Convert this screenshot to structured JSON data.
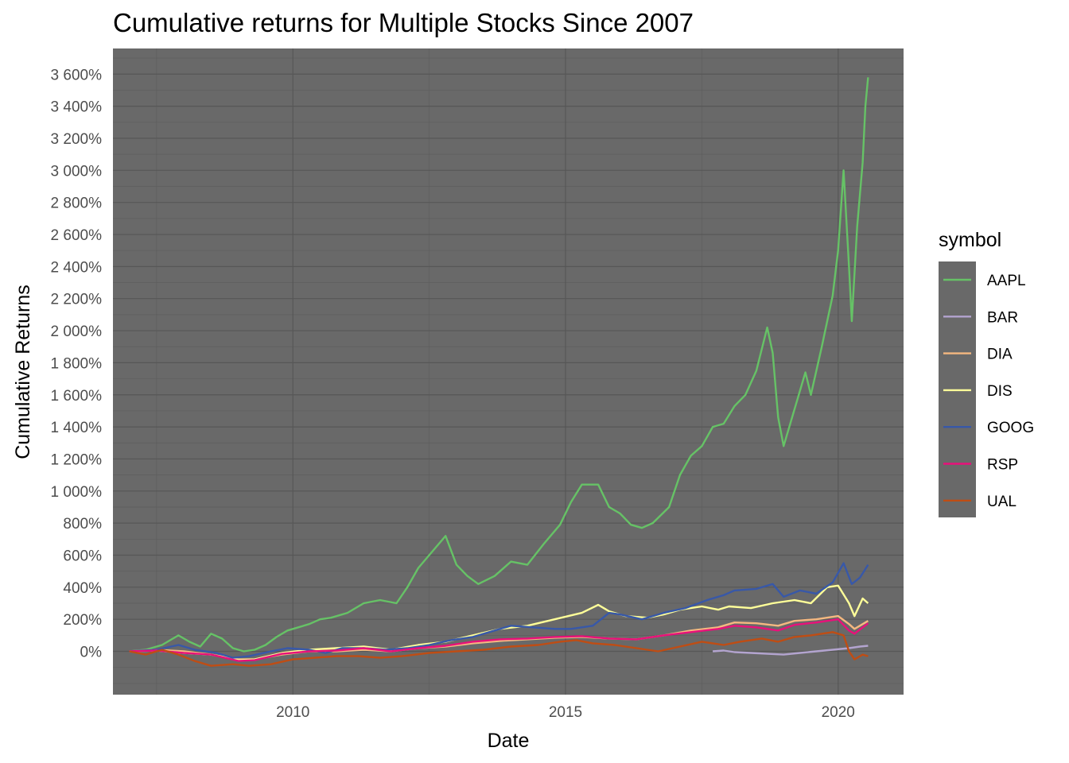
{
  "chart_data": {
    "type": "line",
    "title": "Cumulative returns for Multiple Stocks Since 2007",
    "xlabel": "Date",
    "ylabel": "Cumulative Returns",
    "x_ticks": [
      {
        "label": "2010",
        "value": 2010
      },
      {
        "label": "2015",
        "value": 2015
      },
      {
        "label": "2020",
        "value": 2020
      }
    ],
    "y_ticks": [
      {
        "label": "0%",
        "value": 0
      },
      {
        "label": "200%",
        "value": 200
      },
      {
        "label": "400%",
        "value": 400
      },
      {
        "label": "600%",
        "value": 600
      },
      {
        "label": "800%",
        "value": 800
      },
      {
        "label": "1 000%",
        "value": 1000
      },
      {
        "label": "1 200%",
        "value": 1200
      },
      {
        "label": "1 400%",
        "value": 1400
      },
      {
        "label": "1 600%",
        "value": 1600
      },
      {
        "label": "1 800%",
        "value": 1800
      },
      {
        "label": "2 000%",
        "value": 2000
      },
      {
        "label": "2 200%",
        "value": 2200
      },
      {
        "label": "2 400%",
        "value": 2400
      },
      {
        "label": "2 600%",
        "value": 2600
      },
      {
        "label": "2 800%",
        "value": 2800
      },
      {
        "label": "3 000%",
        "value": 3000
      },
      {
        "label": "3 200%",
        "value": 3200
      },
      {
        "label": "3 400%",
        "value": 3400
      },
      {
        "label": "3 600%",
        "value": 3600
      }
    ],
    "xlim": [
      2006.7,
      2021.2
    ],
    "ylim": [
      -270,
      3760
    ],
    "grid": true,
    "legend": {
      "title": "symbol",
      "position": "right"
    },
    "series": [
      {
        "name": "AAPL",
        "color": "#66c266",
        "points": [
          [
            2007.0,
            0
          ],
          [
            2007.3,
            10
          ],
          [
            2007.6,
            40
          ],
          [
            2007.9,
            100
          ],
          [
            2008.1,
            60
          ],
          [
            2008.3,
            30
          ],
          [
            2008.5,
            110
          ],
          [
            2008.7,
            80
          ],
          [
            2008.9,
            20
          ],
          [
            2009.1,
            0
          ],
          [
            2009.3,
            10
          ],
          [
            2009.5,
            40
          ],
          [
            2009.7,
            90
          ],
          [
            2009.9,
            130
          ],
          [
            2010.1,
            150
          ],
          [
            2010.3,
            170
          ],
          [
            2010.5,
            200
          ],
          [
            2010.7,
            210
          ],
          [
            2011.0,
            240
          ],
          [
            2011.3,
            300
          ],
          [
            2011.6,
            320
          ],
          [
            2011.9,
            300
          ],
          [
            2012.1,
            400
          ],
          [
            2012.3,
            520
          ],
          [
            2012.5,
            600
          ],
          [
            2012.8,
            720
          ],
          [
            2013.0,
            540
          ],
          [
            2013.2,
            470
          ],
          [
            2013.4,
            420
          ],
          [
            2013.7,
            470
          ],
          [
            2014.0,
            560
          ],
          [
            2014.3,
            540
          ],
          [
            2014.6,
            670
          ],
          [
            2014.9,
            790
          ],
          [
            2015.1,
            930
          ],
          [
            2015.3,
            1040
          ],
          [
            2015.6,
            1040
          ],
          [
            2015.8,
            900
          ],
          [
            2016.0,
            860
          ],
          [
            2016.2,
            790
          ],
          [
            2016.4,
            770
          ],
          [
            2016.6,
            800
          ],
          [
            2016.9,
            900
          ],
          [
            2017.1,
            1100
          ],
          [
            2017.3,
            1220
          ],
          [
            2017.5,
            1280
          ],
          [
            2017.7,
            1400
          ],
          [
            2017.9,
            1420
          ],
          [
            2018.1,
            1530
          ],
          [
            2018.3,
            1600
          ],
          [
            2018.5,
            1750
          ],
          [
            2018.7,
            2020
          ],
          [
            2018.8,
            1860
          ],
          [
            2018.9,
            1460
          ],
          [
            2019.0,
            1280
          ],
          [
            2019.2,
            1510
          ],
          [
            2019.4,
            1740
          ],
          [
            2019.5,
            1600
          ],
          [
            2019.7,
            1900
          ],
          [
            2019.9,
            2220
          ],
          [
            2020.0,
            2500
          ],
          [
            2020.1,
            3000
          ],
          [
            2020.2,
            2400
          ],
          [
            2020.25,
            2060
          ],
          [
            2020.35,
            2650
          ],
          [
            2020.45,
            3050
          ],
          [
            2020.5,
            3400
          ],
          [
            2020.55,
            3580
          ]
        ]
      },
      {
        "name": "BAR",
        "color": "#b3a4cf",
        "points": [
          [
            2017.7,
            0
          ],
          [
            2017.9,
            5
          ],
          [
            2018.1,
            -5
          ],
          [
            2018.4,
            -10
          ],
          [
            2018.7,
            -15
          ],
          [
            2019.0,
            -20
          ],
          [
            2019.3,
            -10
          ],
          [
            2019.6,
            0
          ],
          [
            2019.9,
            10
          ],
          [
            2020.2,
            20
          ],
          [
            2020.4,
            30
          ],
          [
            2020.55,
            35
          ]
        ]
      },
      {
        "name": "DIA",
        "color": "#f5b880",
        "points": [
          [
            2007.0,
            0
          ],
          [
            2007.5,
            10
          ],
          [
            2008.0,
            0
          ],
          [
            2008.5,
            -20
          ],
          [
            2009.0,
            -50
          ],
          [
            2009.3,
            -50
          ],
          [
            2009.8,
            -20
          ],
          [
            2010.3,
            0
          ],
          [
            2010.8,
            0
          ],
          [
            2011.3,
            10
          ],
          [
            2011.8,
            0
          ],
          [
            2012.3,
            20
          ],
          [
            2012.8,
            30
          ],
          [
            2013.3,
            50
          ],
          [
            2013.8,
            65
          ],
          [
            2014.3,
            75
          ],
          [
            2014.8,
            85
          ],
          [
            2015.3,
            90
          ],
          [
            2015.8,
            80
          ],
          [
            2016.3,
            75
          ],
          [
            2016.8,
            100
          ],
          [
            2017.3,
            130
          ],
          [
            2017.8,
            150
          ],
          [
            2018.1,
            180
          ],
          [
            2018.5,
            175
          ],
          [
            2018.9,
            160
          ],
          [
            2019.2,
            190
          ],
          [
            2019.6,
            200
          ],
          [
            2020.0,
            220
          ],
          [
            2020.2,
            170
          ],
          [
            2020.3,
            140
          ],
          [
            2020.55,
            190
          ]
        ]
      },
      {
        "name": "DIS",
        "color": "#ffff99",
        "points": [
          [
            2007.0,
            0
          ],
          [
            2007.5,
            5
          ],
          [
            2008.0,
            -10
          ],
          [
            2008.5,
            -20
          ],
          [
            2009.0,
            -55
          ],
          [
            2009.3,
            -50
          ],
          [
            2009.8,
            -10
          ],
          [
            2010.3,
            10
          ],
          [
            2010.8,
            20
          ],
          [
            2011.3,
            30
          ],
          [
            2011.8,
            10
          ],
          [
            2012.3,
            40
          ],
          [
            2012.8,
            60
          ],
          [
            2013.3,
            100
          ],
          [
            2013.8,
            140
          ],
          [
            2014.3,
            160
          ],
          [
            2014.8,
            200
          ],
          [
            2015.3,
            240
          ],
          [
            2015.6,
            290
          ],
          [
            2015.8,
            250
          ],
          [
            2016.1,
            220
          ],
          [
            2016.5,
            210
          ],
          [
            2016.8,
            230
          ],
          [
            2017.1,
            260
          ],
          [
            2017.5,
            280
          ],
          [
            2017.8,
            260
          ],
          [
            2018.0,
            280
          ],
          [
            2018.4,
            270
          ],
          [
            2018.8,
            300
          ],
          [
            2019.2,
            320
          ],
          [
            2019.5,
            300
          ],
          [
            2019.8,
            400
          ],
          [
            2020.0,
            410
          ],
          [
            2020.2,
            300
          ],
          [
            2020.3,
            220
          ],
          [
            2020.45,
            330
          ],
          [
            2020.55,
            300
          ]
        ]
      },
      {
        "name": "GOOG",
        "color": "#3858a8",
        "points": [
          [
            2007.0,
            0
          ],
          [
            2007.5,
            10
          ],
          [
            2007.9,
            40
          ],
          [
            2008.2,
            10
          ],
          [
            2008.6,
            -10
          ],
          [
            2008.9,
            -40
          ],
          [
            2009.2,
            -30
          ],
          [
            2009.6,
            0
          ],
          [
            2009.9,
            20
          ],
          [
            2010.3,
            10
          ],
          [
            2010.6,
            -10
          ],
          [
            2010.9,
            20
          ],
          [
            2011.3,
            20
          ],
          [
            2011.7,
            10
          ],
          [
            2012.1,
            20
          ],
          [
            2012.5,
            40
          ],
          [
            2012.9,
            70
          ],
          [
            2013.3,
            90
          ],
          [
            2013.7,
            130
          ],
          [
            2014.0,
            160
          ],
          [
            2014.4,
            150
          ],
          [
            2014.8,
            140
          ],
          [
            2015.1,
            140
          ],
          [
            2015.5,
            160
          ],
          [
            2015.8,
            240
          ],
          [
            2016.0,
            230
          ],
          [
            2016.4,
            200
          ],
          [
            2016.8,
            240
          ],
          [
            2017.2,
            270
          ],
          [
            2017.6,
            320
          ],
          [
            2017.9,
            350
          ],
          [
            2018.1,
            380
          ],
          [
            2018.5,
            390
          ],
          [
            2018.8,
            420
          ],
          [
            2019.0,
            340
          ],
          [
            2019.3,
            380
          ],
          [
            2019.6,
            360
          ],
          [
            2019.9,
            430
          ],
          [
            2020.1,
            550
          ],
          [
            2020.25,
            420
          ],
          [
            2020.4,
            460
          ],
          [
            2020.55,
            540
          ]
        ]
      },
      {
        "name": "RSP",
        "color": "#e8117a",
        "points": [
          [
            2007.0,
            0
          ],
          [
            2007.5,
            5
          ],
          [
            2008.0,
            -10
          ],
          [
            2008.5,
            -20
          ],
          [
            2009.0,
            -60
          ],
          [
            2009.3,
            -55
          ],
          [
            2009.8,
            -15
          ],
          [
            2010.3,
            0
          ],
          [
            2010.8,
            5
          ],
          [
            2011.3,
            20
          ],
          [
            2011.8,
            0
          ],
          [
            2012.3,
            20
          ],
          [
            2012.8,
            35
          ],
          [
            2013.3,
            60
          ],
          [
            2013.8,
            75
          ],
          [
            2014.3,
            80
          ],
          [
            2014.8,
            90
          ],
          [
            2015.3,
            95
          ],
          [
            2015.8,
            80
          ],
          [
            2016.3,
            75
          ],
          [
            2016.8,
            100
          ],
          [
            2017.3,
            120
          ],
          [
            2017.8,
            140
          ],
          [
            2018.1,
            160
          ],
          [
            2018.5,
            150
          ],
          [
            2018.9,
            130
          ],
          [
            2019.2,
            165
          ],
          [
            2019.6,
            180
          ],
          [
            2020.0,
            200
          ],
          [
            2020.2,
            130
          ],
          [
            2020.3,
            110
          ],
          [
            2020.55,
            175
          ]
        ]
      },
      {
        "name": "UAL",
        "color": "#bf4d14",
        "points": [
          [
            2007.0,
            0
          ],
          [
            2007.3,
            -20
          ],
          [
            2007.6,
            10
          ],
          [
            2007.9,
            -20
          ],
          [
            2008.2,
            -60
          ],
          [
            2008.5,
            -90
          ],
          [
            2008.9,
            -80
          ],
          [
            2009.2,
            -90
          ],
          [
            2009.6,
            -80
          ],
          [
            2010.0,
            -50
          ],
          [
            2010.4,
            -40
          ],
          [
            2010.8,
            -30
          ],
          [
            2011.2,
            -30
          ],
          [
            2011.6,
            -40
          ],
          [
            2012.0,
            -30
          ],
          [
            2012.5,
            -10
          ],
          [
            2013.0,
            0
          ],
          [
            2013.5,
            10
          ],
          [
            2014.0,
            30
          ],
          [
            2014.5,
            40
          ],
          [
            2014.9,
            60
          ],
          [
            2015.2,
            70
          ],
          [
            2015.5,
            50
          ],
          [
            2015.9,
            40
          ],
          [
            2016.3,
            20
          ],
          [
            2016.7,
            0
          ],
          [
            2017.1,
            30
          ],
          [
            2017.5,
            60
          ],
          [
            2017.9,
            40
          ],
          [
            2018.2,
            60
          ],
          [
            2018.6,
            80
          ],
          [
            2018.9,
            60
          ],
          [
            2019.2,
            90
          ],
          [
            2019.5,
            100
          ],
          [
            2019.9,
            120
          ],
          [
            2020.1,
            100
          ],
          [
            2020.2,
            0
          ],
          [
            2020.3,
            -50
          ],
          [
            2020.45,
            -20
          ],
          [
            2020.55,
            -30
          ]
        ]
      }
    ]
  }
}
